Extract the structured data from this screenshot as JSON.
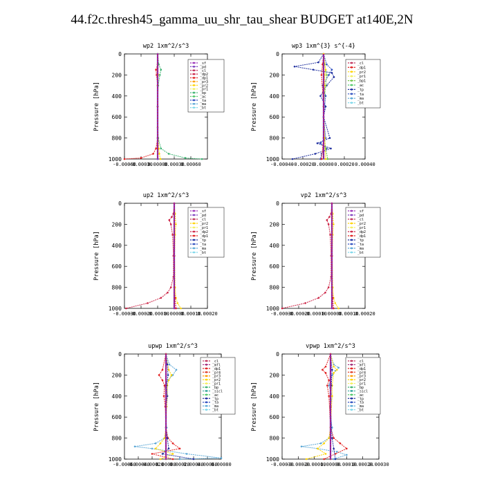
{
  "title": "44.f2c.thresh45_gamma_uu_shr_tau_shear  BUDGET at140E,2N",
  "colors": {
    "sf": "#9a2fb8",
    "pd": "#7f3fbf",
    "cl": "#c0305a",
    "dp2": "#cc2244",
    "dp1": "#e22020",
    "pr3": "#ff9a00",
    "pr2": "#ffd400",
    "pr1": "#f4f060",
    "bp1": "#72c64c",
    "bp": "#3cb371",
    "ac": "#4fc86a",
    "ta": "#3050c0",
    "tp": "#1f2f9f",
    "ma": "#5aa7d6",
    "bt": "#7fd8ea",
    "mfl": "#a02878",
    "pr4": "#e0402a",
    "sicl": "#2fa39a",
    "pr": "#ffb000"
  },
  "chart_data": [
    {
      "type": "line",
      "title": "wp2   1xm^2/s^3",
      "ylabel": "Pressure [hPa]",
      "ylim": [
        0,
        1000
      ],
      "xlim": [
        -0.0006,
        0.0009
      ],
      "xticks": [
        -0.0006,
        -0.0003,
        0.0,
        0.0003,
        0.0006
      ],
      "xtick_labels": [
        "-0.00060",
        "-0.00030",
        "0.00000",
        "0.00030",
        "0.00060"
      ],
      "yticks": [
        0,
        200,
        400,
        600,
        800,
        1000
      ],
      "legend": [
        "sf",
        "pd",
        "cl",
        "dp2",
        "dp1",
        "pr3",
        "pr2",
        "pr1",
        "bp",
        "ac",
        "ta",
        "ma",
        "bt"
      ],
      "series": [
        {
          "name": "sf",
          "p": [
            0,
            100,
            200,
            300,
            500,
            700,
            900,
            1000
          ],
          "v": [
            0,
            0,
            0,
            0,
            0,
            0,
            0,
            0
          ]
        },
        {
          "name": "dp1",
          "p": [
            0,
            100,
            150,
            200,
            300,
            500,
            800,
            900,
            950,
            990,
            1000
          ],
          "v": [
            0,
            0,
            -3e-05,
            -2e-05,
            0,
            0,
            0,
            -3e-05,
            -8e-05,
            -0.0003,
            -0.0006
          ]
        },
        {
          "name": "bp",
          "p": [
            0,
            100,
            150,
            200,
            300,
            500,
            800,
            900,
            950,
            990,
            1000
          ],
          "v": [
            0,
            2e-05,
            6e-05,
            4e-05,
            1e-05,
            0,
            1e-05,
            6e-05,
            0.0002,
            0.0005,
            0.0008
          ]
        },
        {
          "name": "pr2",
          "p": [
            0,
            100,
            200,
            300,
            500,
            700,
            900,
            950,
            1000
          ],
          "v": [
            0,
            0,
            1e-05,
            0,
            0,
            0,
            2e-05,
            3e-05,
            5e-05
          ]
        },
        {
          "name": "pd",
          "p": [
            0,
            200,
            500,
            800,
            1000
          ],
          "v": [
            0,
            0,
            0,
            0,
            0
          ]
        }
      ]
    },
    {
      "type": "line",
      "title": "wp3   1xm^{3} s^{-4}",
      "ylabel": "Pressure [hPa]",
      "ylim": [
        0,
        1000
      ],
      "xlim": [
        -0.0004,
        0.0004
      ],
      "xticks": [
        -0.0004,
        -0.0002,
        0.0,
        0.0002,
        0.0004
      ],
      "xtick_labels": [
        "-0.00040",
        "-0.00020",
        "0.00000",
        "0.00020",
        "0.00040"
      ],
      "yticks": [
        0,
        200,
        400,
        600,
        800,
        1000
      ],
      "legend": [
        "cl",
        "dp1",
        "pr2",
        "pr1",
        "bp1",
        "ac",
        "tp",
        "ta",
        "ma",
        "bt"
      ],
      "series": [
        {
          "name": "tp",
          "p": [
            0,
            80,
            120,
            150,
            180,
            220,
            300,
            400,
            500,
            600,
            800,
            850,
            900,
            950,
            1000
          ],
          "v": [
            0,
            -5e-05,
            -0.00028,
            -0.0001,
            8e-05,
            0.0001,
            3e-05,
            -3e-05,
            2e-05,
            0,
            6e-05,
            -6e-05,
            7e-05,
            -8e-05,
            -0.0003
          ]
        },
        {
          "name": "ta",
          "p": [
            0,
            100,
            150,
            200,
            300,
            400,
            600,
            800,
            850,
            900,
            950,
            1000
          ],
          "v": [
            0,
            3e-05,
            8e-05,
            5e-05,
            -1e-05,
            2e-05,
            0,
            2e-05,
            -3e-05,
            3e-05,
            -2e-05,
            -3e-05
          ]
        },
        {
          "name": "bp1",
          "p": [
            0,
            100,
            200,
            300,
            500,
            700,
            900,
            1000
          ],
          "v": [
            0,
            1e-05,
            3e-05,
            2e-05,
            0,
            0,
            2e-05,
            4e-05
          ]
        },
        {
          "name": "dp1",
          "p": [
            0,
            100,
            200,
            500,
            800,
            1000
          ],
          "v": [
            0,
            -1e-05,
            -2e-05,
            0,
            0,
            -2e-05
          ]
        },
        {
          "name": "pr2",
          "p": [
            0,
            150,
            200,
            300,
            500,
            800,
            1000
          ],
          "v": [
            0,
            2e-05,
            1e-05,
            1e-05,
            0,
            1e-05,
            2e-05
          ]
        }
      ]
    },
    {
      "type": "line",
      "title": "up2   1xm^2/s^3",
      "ylabel": "Pressure [hPa]",
      "ylim": [
        0,
        1000
      ],
      "xlim": [
        -0.0003,
        0.0002
      ],
      "xticks": [
        -0.0003,
        -0.0002,
        -0.0001,
        0.0,
        0.0001,
        0.0002
      ],
      "xtick_labels": [
        "-0.00030",
        "-0.00020",
        "-0.00010",
        "0.00000",
        "0.00010",
        "0.00020"
      ],
      "yticks": [
        0,
        200,
        400,
        600,
        800,
        1000
      ],
      "legend": [
        "sf",
        "pd",
        "cl",
        "pr2",
        "pr1",
        "dp2",
        "dp1",
        "tp",
        "ta",
        "ma",
        "bt"
      ],
      "series": [
        {
          "name": "dp2",
          "p": [
            0,
            100,
            130,
            160,
            200,
            300,
            500,
            700,
            800,
            850,
            900,
            950,
            1000
          ],
          "v": [
            0,
            -5e-06,
            -1.5e-05,
            -3e-05,
            -2e-05,
            -1e-05,
            -5e-06,
            -5e-06,
            -2e-05,
            -4e-05,
            -8e-05,
            -0.00016,
            -0.00029
          ]
        },
        {
          "name": "pr2",
          "p": [
            0,
            100,
            200,
            300,
            500,
            800,
            900,
            950,
            1000
          ],
          "v": [
            0,
            5e-06,
            1e-05,
            5e-06,
            2e-06,
            5e-06,
            1e-05,
            2e-05,
            4e-05
          ]
        },
        {
          "name": "dp1",
          "p": [
            0,
            200,
            500,
            800,
            900,
            1000
          ],
          "v": [
            0,
            0,
            0,
            0,
            5e-06,
            1e-05
          ]
        },
        {
          "name": "sf",
          "p": [
            0,
            500,
            1000
          ],
          "v": [
            0,
            0,
            0
          ]
        }
      ]
    },
    {
      "type": "line",
      "title": "vp2   1xm^2/s^3",
      "ylabel": "Pressure [hPa]",
      "ylim": [
        0,
        1000
      ],
      "xlim": [
        -0.0003,
        0.0002
      ],
      "xticks": [
        -0.0003,
        -0.0002,
        -0.0001,
        0.0,
        0.0001,
        0.0002
      ],
      "xtick_labels": [
        "-0.00030",
        "-0.00020",
        "-0.00010",
        "0.00000",
        "0.00010",
        "0.00020"
      ],
      "yticks": [
        0,
        200,
        400,
        600,
        800,
        1000
      ],
      "legend": [
        "sf",
        "pd",
        "cl",
        "pr2",
        "pr1",
        "dp2",
        "dp1",
        "tp",
        "ta",
        "ma",
        "bt"
      ],
      "series": [
        {
          "name": "dp2",
          "p": [
            0,
            100,
            130,
            160,
            200,
            300,
            500,
            700,
            800,
            850,
            900,
            950,
            1000
          ],
          "v": [
            0,
            -5e-06,
            -1.5e-05,
            -3e-05,
            -2e-05,
            -1e-05,
            -5e-06,
            -5e-06,
            -2e-05,
            -4e-05,
            -8e-05,
            -0.00016,
            -0.0003
          ]
        },
        {
          "name": "pr2",
          "p": [
            0,
            100,
            200,
            300,
            500,
            800,
            900,
            950,
            1000
          ],
          "v": [
            0,
            5e-06,
            1e-05,
            5e-06,
            2e-06,
            5e-06,
            1e-05,
            2e-05,
            4e-05
          ]
        },
        {
          "name": "dp1",
          "p": [
            0,
            200,
            500,
            800,
            900,
            1000
          ],
          "v": [
            0,
            0,
            0,
            0,
            5e-06,
            1e-05
          ]
        },
        {
          "name": "sf",
          "p": [
            0,
            500,
            1000
          ],
          "v": [
            0,
            0,
            0
          ]
        }
      ]
    },
    {
      "type": "line",
      "title": "upwp   1xm^2/s^3",
      "ylabel": "Pressure [hPa]",
      "ylim": [
        0,
        1000
      ],
      "xlim": [
        -0.0006,
        0.0008
      ],
      "xticks": [
        -0.0006,
        -0.0004,
        -0.0002,
        0.0,
        0.0002,
        0.0004,
        0.0006,
        0.0008
      ],
      "xtick_labels": [
        "-0.00060",
        "-0.00040",
        "-0.00020",
        "0.00000",
        "0.00020",
        "0.00040",
        "0.00060",
        "0.00080"
      ],
      "yticks": [
        0,
        200,
        400,
        600,
        800,
        1000
      ],
      "legend": [
        "cl",
        "mfl",
        "dp1",
        "pr4",
        "pr3",
        "pr2",
        "pr1",
        "bp",
        "sicl",
        "ac",
        "tp",
        "ta",
        "ma",
        "bt"
      ],
      "series": [
        {
          "name": "ma",
          "p": [
            0,
            100,
            150,
            200,
            250,
            300,
            400,
            500,
            600,
            700,
            800,
            850,
            880,
            900,
            950,
            990,
            1000
          ],
          "v": [
            0,
            5e-05,
            0.00015,
            0.0001,
            3e-05,
            -2e-05,
            2e-05,
            1e-05,
            0,
            1e-05,
            -2e-05,
            -0.00015,
            -0.00045,
            -0.0002,
            0.0003,
            0.0008,
            0.0002
          ]
        },
        {
          "name": "dp1",
          "p": [
            0,
            150,
            200,
            250,
            300,
            400,
            500,
            700,
            800,
            850,
            900,
            950,
            1000
          ],
          "v": [
            0,
            -5e-05,
            -0.0001,
            -5e-05,
            -2e-05,
            -3e-05,
            -1e-05,
            0,
            3e-05,
            0.0001,
            0.0002,
            -0.0002,
            0.0001
          ]
        },
        {
          "name": "pr2",
          "p": [
            0,
            150,
            200,
            250,
            300,
            400,
            500,
            700,
            800,
            850,
            900,
            950,
            1000
          ],
          "v": [
            0,
            4e-05,
            8e-05,
            4e-05,
            2e-05,
            2e-05,
            1e-05,
            0,
            -2e-05,
            -8e-05,
            -0.00015,
            0.0001,
            -8e-05
          ]
        },
        {
          "name": "tp",
          "p": [
            0,
            100,
            200,
            300,
            400,
            500,
            700,
            800,
            900,
            950,
            1000
          ],
          "v": [
            0,
            2e-05,
            3e-05,
            1e-05,
            2e-05,
            0,
            0,
            2e-05,
            4e-05,
            -5e-05,
            0.0004
          ]
        },
        {
          "name": "cl",
          "p": [
            0,
            500,
            1000
          ],
          "v": [
            0,
            0,
            0
          ]
        }
      ]
    },
    {
      "type": "line",
      "title": "vpwp   1xm^2/s^3",
      "ylabel": "Pressure [hPa]",
      "ylim": [
        0,
        1000
      ],
      "xlim": [
        -0.0003,
        0.0003
      ],
      "xticks": [
        -0.0003,
        -0.0002,
        -0.0001,
        0.0,
        0.0001,
        0.0002,
        0.0003
      ],
      "xtick_labels": [
        "-0.00030",
        "-0.00020",
        "-0.00010",
        "0.00000",
        "0.00010",
        "0.00020",
        "0.00030"
      ],
      "yticks": [
        0,
        200,
        400,
        600,
        800,
        1000
      ],
      "legend": [
        "cl",
        "mfl",
        "dp1",
        "pr4",
        "pr3",
        "pr2",
        "pr1",
        "bp",
        "sicl",
        "ac",
        "tp",
        "ta",
        "ma",
        "bt"
      ],
      "series": [
        {
          "name": "ma",
          "p": [
            0,
            100,
            130,
            160,
            200,
            300,
            400,
            500,
            600,
            700,
            800,
            850,
            880,
            900,
            930,
            960,
            1000
          ],
          "v": [
            0,
            2e-05,
            5e-05,
            3e-05,
            1e-05,
            -1e-05,
            1e-05,
            0,
            0,
            1e-05,
            -1e-05,
            -6e-05,
            -0.00018,
            -8e-05,
            4e-05,
            0.0001,
            2e-05
          ]
        },
        {
          "name": "dp1",
          "p": [
            0,
            120,
            150,
            180,
            250,
            300,
            400,
            700,
            800,
            850,
            900,
            950,
            1000
          ],
          "v": [
            0,
            -3e-05,
            -5e-05,
            -3e-05,
            -1e-05,
            -2e-05,
            -1e-05,
            0,
            2e-05,
            6e-05,
            0.0001,
            3e-05,
            -4e-05
          ]
        },
        {
          "name": "pr2",
          "p": [
            0,
            120,
            150,
            180,
            300,
            400,
            700,
            800,
            850,
            900,
            950,
            1000
          ],
          "v": [
            0,
            2e-05,
            4e-05,
            2e-05,
            1e-05,
            1e-05,
            0,
            -1e-05,
            -4e-05,
            -8e-05,
            -3e-05,
            -0.00015
          ]
        },
        {
          "name": "tp",
          "p": [
            0,
            150,
            300,
            500,
            800,
            900,
            1000
          ],
          "v": [
            0,
            1e-05,
            5e-06,
            0,
            1e-05,
            2e-05,
            3e-05
          ]
        },
        {
          "name": "cl",
          "p": [
            0,
            500,
            1000
          ],
          "v": [
            0,
            0,
            0
          ]
        }
      ]
    }
  ]
}
